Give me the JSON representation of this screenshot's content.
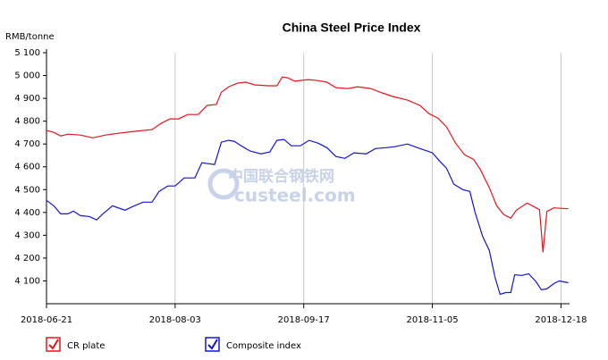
{
  "chart_data": {
    "type": "line",
    "title": "China Steel Price Index",
    "y_label": "RMB/tonne",
    "watermark": [
      "中国联合钢铁网",
      "custeel.com"
    ],
    "xlim": [
      0,
      122
    ],
    "xticks": [
      {
        "value": 0,
        "label": "2018-06-21"
      },
      {
        "value": 30,
        "label": "2018-08-03"
      },
      {
        "value": 60,
        "label": "2018-09-17"
      },
      {
        "value": 90,
        "label": "2018-11-05"
      },
      {
        "value": 120,
        "label": "2018-12-18"
      }
    ],
    "ylim": [
      4000,
      5100
    ],
    "yticks": [
      {
        "value": 4100,
        "label": "4 100"
      },
      {
        "value": 4200,
        "label": "4 200"
      },
      {
        "value": 4300,
        "label": "4 300"
      },
      {
        "value": 4400,
        "label": "4 400"
      },
      {
        "value": 4500,
        "label": "4 500"
      },
      {
        "value": 4600,
        "label": "4 600"
      },
      {
        "value": 4700,
        "label": "4 700"
      },
      {
        "value": 4800,
        "label": "4 800"
      },
      {
        "value": 4900,
        "label": "4 900"
      },
      {
        "value": 5000,
        "label": "5 000"
      },
      {
        "value": 5100,
        "label": "5 100"
      }
    ],
    "grid": true,
    "series": [
      {
        "name": "CR plate",
        "color": "#e8141c",
        "x": [
          0,
          1.7,
          3.3,
          5,
          7.9,
          10.8,
          13.75,
          16.7,
          20.4,
          24.6,
          26.7,
          28.75,
          30.8,
          32.9,
          35.4,
          37.5,
          39.6,
          40.8,
          42.5,
          44.6,
          46.5,
          48.5,
          51.7,
          53.75,
          55,
          56.25,
          57.9,
          61,
          63.3,
          65.4,
          67.5,
          70.4,
          72.5,
          75.6,
          78.3,
          80.8,
          84.2,
          87.1,
          89.2,
          91.25,
          93.3,
          95.4,
          97.5,
          99.6,
          101.25,
          103.3,
          105,
          106.7,
          108.3,
          109.6,
          112.1,
          114.2,
          115,
          115.8,
          116.7,
          118.3,
          121.7
        ],
        "values": [
          4759,
          4751,
          4735,
          4743,
          4739,
          4727,
          4739,
          4747,
          4755,
          4763,
          4790,
          4810,
          4810,
          4829,
          4829,
          4869,
          4873,
          4927,
          4951,
          4967,
          4971,
          4959,
          4955,
          4955,
          4994,
          4990,
          4975,
          4982,
          4978,
          4971,
          4947,
          4943,
          4951,
          4943,
          4924,
          4908,
          4892,
          4869,
          4833,
          4814,
          4775,
          4704,
          4653,
          4633,
          4586,
          4508,
          4429,
          4390,
          4375,
          4410,
          4441,
          4420,
          4412,
          4225,
          4404,
          4420,
          4416
        ]
      },
      {
        "name": "Composite index",
        "color": "#1414d8",
        "x": [
          0,
          1.7,
          3.3,
          5,
          6.25,
          7.9,
          10,
          11.7,
          12.9,
          15.4,
          18.3,
          20,
          22.5,
          24.6,
          26.25,
          28.3,
          30,
          32.1,
          34.6,
          36.25,
          39.2,
          40.8,
          42.5,
          43.75,
          45.4,
          47.5,
          50,
          52.1,
          53.75,
          55.4,
          57.1,
          59.2,
          61.25,
          63.3,
          65.4,
          67.5,
          69.6,
          71.7,
          74.6,
          76.7,
          79.2,
          81.25,
          84.2,
          87.1,
          90,
          91.7,
          93.3,
          95,
          97.1,
          98.75,
          100,
          101.7,
          103.3,
          104.6,
          105.8,
          107.1,
          108.3,
          109.2,
          110.8,
          112.5,
          114.2,
          115.4,
          116.7,
          118.3,
          119.6,
          121.7
        ],
        "values": [
          4453,
          4429,
          4394,
          4394,
          4406,
          4386,
          4382,
          4367,
          4390,
          4429,
          4410,
          4425,
          4445,
          4445,
          4492,
          4516,
          4516,
          4551,
          4551,
          4618,
          4610,
          4708,
          4716,
          4712,
          4692,
          4669,
          4657,
          4665,
          4716,
          4720,
          4692,
          4692,
          4716,
          4704,
          4684,
          4645,
          4637,
          4661,
          4657,
          4680,
          4684,
          4688,
          4700,
          4680,
          4661,
          4625,
          4594,
          4524,
          4500,
          4492,
          4398,
          4296,
          4233,
          4116,
          4041,
          4049,
          4049,
          4127,
          4124,
          4131,
          4096,
          4061,
          4065,
          4088,
          4100,
          4092
        ]
      }
    ]
  }
}
